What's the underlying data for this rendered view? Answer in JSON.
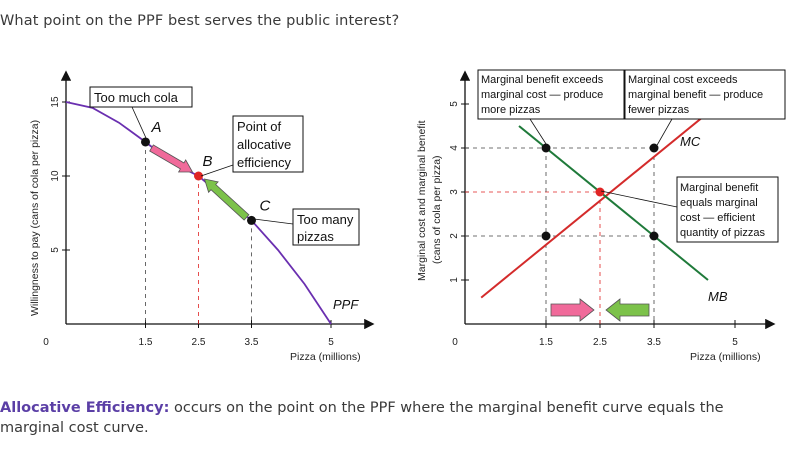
{
  "question": "What point on the PPF best serves the public interest?",
  "caption": {
    "term": "Allocative Efficiency:",
    "text": " occurs on the point on the PPF where the marginal benefit curve equals the marginal cost curve."
  },
  "colors": {
    "ppf_curve": "#6a2fb0",
    "mc_curve": "#d42b2b",
    "mb_curve": "#1f7a3a",
    "pink_arrow": "#f06a9a",
    "green_arrow": "#7cc24a",
    "point_dark": "#111111",
    "point_red": "#e02424",
    "caption_term": "#5b3fa6"
  },
  "chart_data": [
    {
      "type": "line",
      "title": "",
      "xlabel": "Pizza (millions)",
      "ylabel": "Willingness to pay (cans of cola per pizza)",
      "xlim": [
        0,
        5
      ],
      "ylim": [
        0,
        15
      ],
      "x_ticks": [
        "0",
        "1.5",
        "2.5",
        "3.5",
        "5"
      ],
      "y_ticks": [
        "5",
        "10",
        "15"
      ],
      "series": [
        {
          "name": "PPF",
          "x": [
            0,
            0.5,
            1.0,
            1.5,
            2.0,
            2.5,
            3.0,
            3.5,
            4.0,
            4.5,
            5.0
          ],
          "y": [
            15,
            14.6,
            13.6,
            12.3,
            10.9,
            10.0,
            8.5,
            7.0,
            5.0,
            2.7,
            0
          ]
        }
      ],
      "points": [
        {
          "label": "A",
          "x": 1.5,
          "y": 12.3,
          "color": "dark"
        },
        {
          "label": "B",
          "x": 2.5,
          "y": 10.0,
          "color": "red"
        },
        {
          "label": "C",
          "x": 3.5,
          "y": 7.0,
          "color": "dark"
        }
      ],
      "annotations": {
        "too_much_cola": "Too much cola",
        "allocative_line1": "Point of",
        "allocative_line2": "allocative",
        "allocative_line3": "efficiency",
        "too_many_line1": "Too many",
        "too_many_line2": "pizzas",
        "curve_label": "PPF"
      }
    },
    {
      "type": "line",
      "title": "",
      "xlabel": "Pizza (millions)",
      "ylabel_line1": "Marginal cost and marginal benefit",
      "ylabel_line2": "(cans of cola per pizza)",
      "xlim": [
        0,
        5
      ],
      "ylim": [
        0,
        5
      ],
      "x_ticks": [
        "0",
        "1.5",
        "2.5",
        "3.5",
        "5"
      ],
      "y_ticks": [
        "1",
        "2",
        "3",
        "4",
        "5"
      ],
      "series": [
        {
          "name": "MC",
          "x": [
            0.3,
            4.5
          ],
          "y": [
            0.6,
            4.8
          ]
        },
        {
          "name": "MB",
          "x": [
            1.0,
            4.5
          ],
          "y": [
            4.5,
            1.0
          ]
        }
      ],
      "points": [
        {
          "x": 1.5,
          "y": 4,
          "color": "dark"
        },
        {
          "x": 3.5,
          "y": 4,
          "color": "dark"
        },
        {
          "x": 2.5,
          "y": 3,
          "color": "red"
        },
        {
          "x": 1.5,
          "y": 2,
          "color": "dark"
        },
        {
          "x": 3.5,
          "y": 2,
          "color": "dark"
        }
      ],
      "annotations": {
        "mb_exceeds": [
          "Marginal benefit exceeds",
          "marginal cost — produce",
          "more pizzas"
        ],
        "mc_exceeds": [
          "Marginal cost exceeds",
          "marginal benefit — produce",
          "fewer pizzas"
        ],
        "equals": [
          "Marginal benefit",
          "equals marginal",
          "cost — efficient",
          "quantity of pizzas"
        ],
        "mc_label": "MC",
        "mb_label": "MB"
      }
    }
  ]
}
